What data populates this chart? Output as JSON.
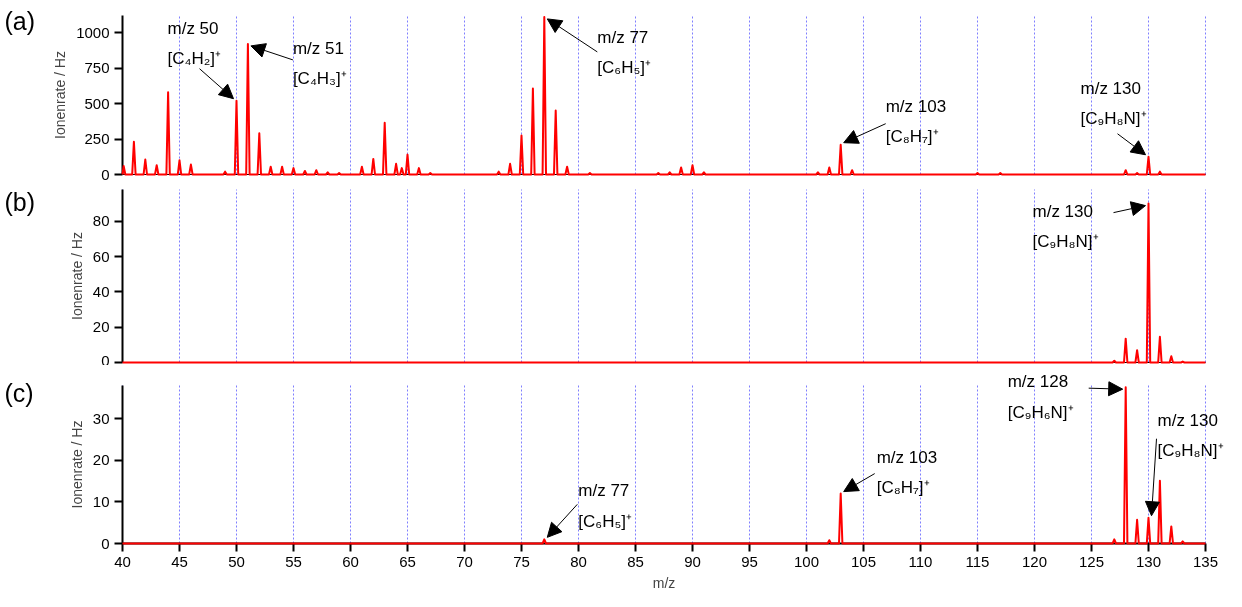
{
  "chart_data": [
    {
      "type": "line",
      "title": "(a)",
      "ylabel": "Ionenrate / Hz",
      "xlim": [
        40,
        135
      ],
      "ylim": [
        0,
        1120
      ],
      "yticks": [
        0,
        250,
        500,
        750,
        1000
      ],
      "grid": "x",
      "tick_labels": "y",
      "series": [
        {
          "color": "#ff0000",
          "x": [
            40,
            40.1,
            40.25,
            40.85,
            41,
            41.15,
            41.85,
            42,
            42.15,
            42.85,
            43,
            43.15,
            43.85,
            44,
            44.15,
            44.85,
            45,
            45.15,
            45.85,
            46,
            46.15,
            48.85,
            49,
            49.15,
            49.85,
            50,
            50.15,
            50.85,
            51,
            51.15,
            51.85,
            52,
            52.15,
            52.85,
            53,
            53.15,
            53.85,
            54,
            54.15,
            54.85,
            55,
            55.15,
            55.85,
            56,
            56.15,
            56.85,
            57,
            57.15,
            57.85,
            58,
            58.15,
            58.85,
            59,
            59.15,
            60.85,
            61,
            61.15,
            61.85,
            62,
            62.15,
            62.85,
            63,
            63.15,
            63.85,
            64,
            64.15,
            64.35,
            64.5,
            64.65,
            64.85,
            65,
            65.15,
            65.85,
            66,
            66.15,
            66.85,
            67,
            67.15,
            72.85,
            73,
            73.15,
            73.85,
            74,
            74.15,
            74.85,
            75,
            75.15,
            75.85,
            76,
            76.15,
            76.85,
            77,
            77.15,
            77.85,
            78,
            78.15,
            78.85,
            79,
            79.15,
            80.85,
            81,
            81.15,
            86.85,
            87,
            87.15,
            87.85,
            88,
            88.15,
            88.85,
            89,
            89.15,
            89.85,
            90,
            90.15,
            90.85,
            91,
            91.15,
            100.85,
            101,
            101.15,
            101.85,
            102,
            102.15,
            102.85,
            103,
            103.15,
            103.85,
            104,
            104.15,
            114.85,
            115,
            115.15,
            116.85,
            117,
            117.15,
            127.85,
            128,
            128.15,
            128.85,
            129,
            129.15,
            129.85,
            130,
            130.15,
            130.85,
            131,
            131.15,
            135
          ],
          "values": [
            0,
            60,
            0,
            0,
            230,
            0,
            0,
            105,
            0,
            0,
            65,
            0,
            0,
            580,
            0,
            0,
            100,
            0,
            0,
            70,
            0,
            0,
            20,
            0,
            0,
            520,
            0,
            0,
            920,
            0,
            0,
            290,
            0,
            0,
            55,
            0,
            0,
            55,
            0,
            0,
            45,
            0,
            0,
            25,
            0,
            0,
            30,
            0,
            0,
            15,
            0,
            0,
            10,
            0,
            0,
            55,
            0,
            0,
            110,
            0,
            0,
            365,
            0,
            0,
            75,
            0,
            0,
            45,
            0,
            0,
            140,
            0,
            0,
            45,
            0,
            0,
            10,
            0,
            0,
            20,
            0,
            0,
            75,
            0,
            0,
            275,
            0,
            0,
            605,
            0,
            0,
            1110,
            0,
            0,
            450,
            0,
            0,
            55,
            0,
            0,
            10,
            0,
            0,
            10,
            0,
            0,
            15,
            0,
            0,
            50,
            0,
            0,
            65,
            0,
            0,
            15,
            0,
            0,
            15,
            0,
            0,
            50,
            0,
            0,
            210,
            0,
            0,
            30,
            0,
            0,
            10,
            0,
            0,
            10,
            0,
            0,
            30,
            0,
            0,
            10,
            0,
            0,
            125,
            0,
            0,
            20,
            0,
            0
          ]
        }
      ],
      "annotations": [
        {
          "text": "m/z 50\n[C₄H₂]⁺",
          "x": 50,
          "y": 520
        },
        {
          "text": "m/z 51\n[C₄H₃]⁺",
          "x": 51,
          "y": 920
        },
        {
          "text": "m/z 77\n[C₆H₅]⁺",
          "x": 77,
          "y": 1110
        },
        {
          "text": "m/z 103\n[C₈H₇]⁺",
          "x": 103,
          "y": 210
        },
        {
          "text": "m/z 130\n[C₉H₈N]⁺",
          "x": 130,
          "y": 125
        }
      ]
    },
    {
      "type": "line",
      "title": "(b)",
      "ylabel": "Ionenrate / Hz",
      "xlim": [
        40,
        135
      ],
      "ylim": [
        0,
        98
      ],
      "yticks": [
        0,
        20,
        40,
        60,
        80
      ],
      "grid": "x",
      "tick_labels": "y",
      "series": [
        {
          "color": "#ff0000",
          "x": [
            40,
            126.85,
            127,
            127.15,
            127.85,
            128,
            128.15,
            128.85,
            129,
            129.15,
            129.85,
            130,
            130.15,
            130.85,
            131,
            131.15,
            131.85,
            132,
            132.15,
            132.85,
            133,
            133.15,
            135
          ],
          "values": [
            0,
            0,
            1,
            0,
            0,
            13.5,
            0,
            0,
            7,
            0,
            0,
            90,
            0,
            0,
            14.6,
            0,
            0,
            3.5,
            0,
            0,
            0.5,
            0,
            0
          ]
        }
      ],
      "annotations": [
        {
          "text": "m/z 130\n[C₉H₈N]⁺",
          "x": 130,
          "y": 90
        }
      ]
    },
    {
      "type": "line",
      "title": "(c)",
      "xlabel": "m/z",
      "ylabel": "Ionenrate / Hz",
      "xlim": [
        40,
        135
      ],
      "ylim": [
        0,
        38
      ],
      "xticks": [
        40,
        45,
        50,
        55,
        60,
        65,
        70,
        75,
        80,
        85,
        90,
        95,
        100,
        105,
        110,
        115,
        120,
        125,
        130,
        135
      ],
      "yticks": [
        0,
        10,
        20,
        30
      ],
      "grid": "x",
      "series": [
        {
          "color": "#ff0000",
          "x": [
            40,
            76.85,
            77,
            77.15,
            101.85,
            102,
            102.15,
            102.85,
            103,
            103.15,
            126.85,
            127,
            127.15,
            127.85,
            128,
            128.15,
            128.85,
            129,
            129.15,
            129.85,
            130,
            130.15,
            130.85,
            131,
            131.15,
            131.85,
            132,
            132.15,
            132.85,
            133,
            133.15,
            135
          ],
          "values": [
            0,
            0,
            1,
            0,
            0,
            0.8,
            0,
            0,
            12,
            0,
            0,
            1,
            0,
            0,
            37.6,
            0,
            0,
            5.7,
            0,
            0,
            6.2,
            0,
            0,
            15.1,
            0,
            0,
            4.1,
            0,
            0,
            0.5,
            0,
            0
          ]
        }
      ],
      "annotations": [
        {
          "text": "m/z 77\n[C₆H₅]⁺",
          "x": 77,
          "y": 1
        },
        {
          "text": "m/z 103\n[C₈H₇]⁺",
          "x": 103,
          "y": 12
        },
        {
          "text": "m/z 128\n[C₉H₆N]⁺",
          "x": 128,
          "y": 37.6
        },
        {
          "text": "m/z 130\n[C₉H₈N]⁺",
          "x": 130,
          "y": 6.2
        }
      ]
    }
  ]
}
